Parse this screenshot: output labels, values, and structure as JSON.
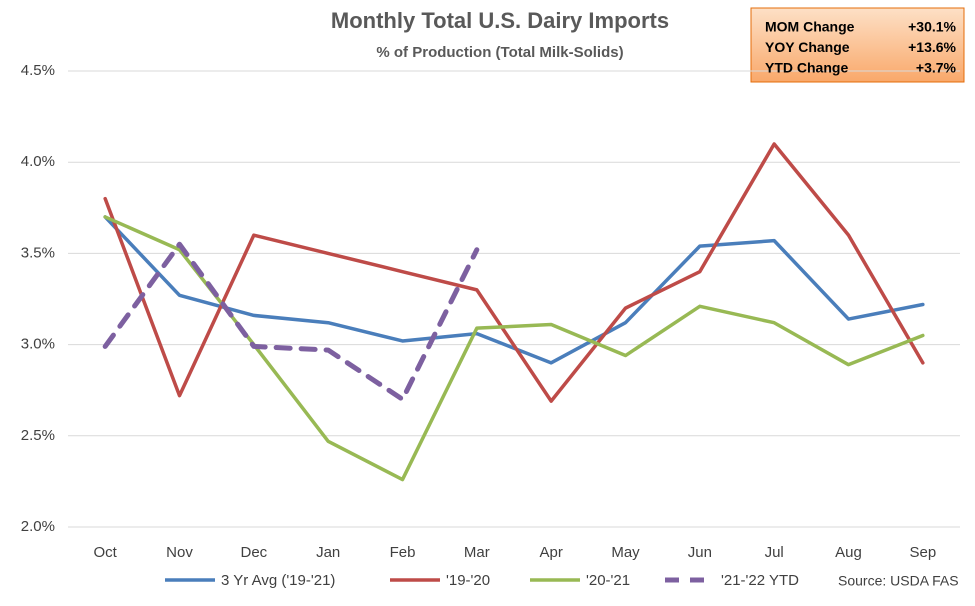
{
  "chart_data": {
    "type": "line",
    "title": "Monthly Total U.S. Dairy Imports",
    "subtitle": "% of Production  (Total Milk-Solids)",
    "source": "Source: USDA FAS",
    "categories": [
      "Oct",
      "Nov",
      "Dec",
      "Jan",
      "Feb",
      "Mar",
      "Apr",
      "May",
      "Jun",
      "Jul",
      "Aug",
      "Sep"
    ],
    "series": [
      {
        "name": "3 Yr Avg ('19-'21)",
        "color": "#4a7ebb",
        "values": [
          3.7,
          3.27,
          3.16,
          3.12,
          3.02,
          3.06,
          2.9,
          3.12,
          3.54,
          3.57,
          3.14,
          3.22
        ]
      },
      {
        "name": "'19-'20",
        "color": "#be4b48",
        "values": [
          3.8,
          2.72,
          3.6,
          3.5,
          3.4,
          3.3,
          2.69,
          3.2,
          3.4,
          4.1,
          3.6,
          2.9
        ]
      },
      {
        "name": "'20-'21",
        "color": "#98b954",
        "values": [
          3.7,
          3.52,
          3.0,
          2.47,
          2.26,
          3.09,
          3.11,
          2.94,
          3.21,
          3.12,
          2.89,
          3.05
        ]
      },
      {
        "name": "'21-'22 YTD",
        "color": "#7d60a0",
        "dashed": true,
        "values": [
          2.99,
          3.55,
          2.99,
          2.97,
          2.7,
          3.52,
          null,
          null,
          null,
          null,
          null,
          null
        ]
      }
    ],
    "ylim": [
      2.0,
      4.5
    ],
    "yticks": [
      {
        "value": 2.0,
        "label": "2.0%"
      },
      {
        "value": 2.5,
        "label": "2.5%"
      },
      {
        "value": 3.0,
        "label": "3.0%"
      },
      {
        "value": 3.5,
        "label": "3.5%"
      },
      {
        "value": 4.0,
        "label": "4.0%"
      },
      {
        "value": 4.5,
        "label": "4.5%"
      }
    ],
    "grid": true,
    "legend": "bottom",
    "info_box": [
      {
        "label": "MOM Change",
        "value": "+30.1%"
      },
      {
        "label": "YOY Change",
        "value": "+13.6%"
      },
      {
        "label": "YTD Change",
        "value": "+3.7%"
      }
    ]
  }
}
